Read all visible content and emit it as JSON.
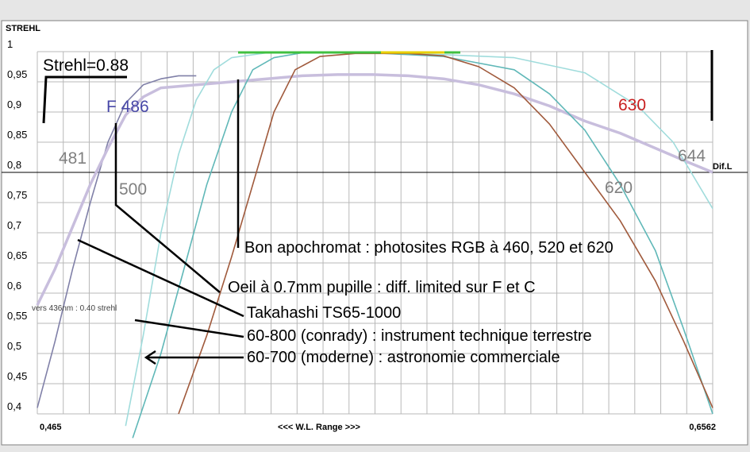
{
  "chart_data": {
    "type": "line",
    "title": "",
    "ylabel": "STREHL",
    "xlabel": "<<<  W.L. Range  >>>",
    "ylim": [
      0.4,
      1.0
    ],
    "xlim": [
      0.465,
      0.6562
    ],
    "x_tick_labels": [
      "0,465",
      "0,6562"
    ],
    "y_ticks": [
      {
        "value": 1.0,
        "label": "1"
      },
      {
        "value": 0.95,
        "label": "0,95"
      },
      {
        "value": 0.9,
        "label": "0,9"
      },
      {
        "value": 0.85,
        "label": "0,85"
      },
      {
        "value": 0.8,
        "label": "0,8"
      },
      {
        "value": 0.75,
        "label": "0,75"
      },
      {
        "value": 0.7,
        "label": "0,7"
      },
      {
        "value": 0.65,
        "label": "0,65"
      },
      {
        "value": 0.6,
        "label": "0,6"
      },
      {
        "value": 0.55,
        "label": "0,55"
      },
      {
        "value": 0.5,
        "label": "0,5"
      },
      {
        "value": 0.45,
        "label": "0,45"
      },
      {
        "value": 0.4,
        "label": "0,4"
      }
    ],
    "grid": true,
    "reference_line": {
      "value": 0.8,
      "label": "Dif.L"
    },
    "series": [
      {
        "name": "Takahashi TS65-1000",
        "color": "#8080a8",
        "points": [
          [
            0.465,
            0.41
          ],
          [
            0.47,
            0.52
          ],
          [
            0.475,
            0.64
          ],
          [
            0.48,
            0.75
          ],
          [
            0.485,
            0.85
          ],
          [
            0.49,
            0.915
          ],
          [
            0.495,
            0.945
          ],
          [
            0.5,
            0.955
          ],
          [
            0.505,
            0.96
          ],
          [
            0.51,
            0.96
          ]
        ]
      },
      {
        "name": "Oeil à 0.7mm pupille : diff. limited  sur F et C",
        "color": "#c8bedd",
        "points": [
          [
            0.465,
            0.58
          ],
          [
            0.47,
            0.64
          ],
          [
            0.475,
            0.71
          ],
          [
            0.48,
            0.78
          ],
          [
            0.485,
            0.84
          ],
          [
            0.49,
            0.895
          ],
          [
            0.495,
            0.925
          ],
          [
            0.5,
            0.94
          ],
          [
            0.51,
            0.945
          ],
          [
            0.52,
            0.95
          ],
          [
            0.53,
            0.955
          ],
          [
            0.54,
            0.96
          ],
          [
            0.55,
            0.962
          ],
          [
            0.56,
            0.962
          ],
          [
            0.57,
            0.96
          ],
          [
            0.58,
            0.955
          ],
          [
            0.59,
            0.945
          ],
          [
            0.6,
            0.93
          ],
          [
            0.61,
            0.91
          ],
          [
            0.62,
            0.885
          ],
          [
            0.63,
            0.865
          ],
          [
            0.64,
            0.84
          ],
          [
            0.65,
            0.815
          ],
          [
            0.6562,
            0.8
          ]
        ]
      },
      {
        "name": "60-800 (conrady) : instrument technique terrestre",
        "color": "#a0dcdc",
        "points": [
          [
            0.49,
            0.38
          ],
          [
            0.495,
            0.53
          ],
          [
            0.5,
            0.7
          ],
          [
            0.505,
            0.83
          ],
          [
            0.51,
            0.92
          ],
          [
            0.515,
            0.97
          ],
          [
            0.52,
            0.99
          ],
          [
            0.53,
            0.998
          ],
          [
            0.56,
            0.998
          ],
          [
            0.58,
            0.995
          ],
          [
            0.6,
            0.99
          ],
          [
            0.62,
            0.965
          ],
          [
            0.635,
            0.91
          ],
          [
            0.645,
            0.85
          ],
          [
            0.6562,
            0.74
          ]
        ]
      },
      {
        "name": "60-700 (moderne) : astronomie commerciale",
        "color": "#60b8b8",
        "points": [
          [
            0.492,
            0.36
          ],
          [
            0.5,
            0.5
          ],
          [
            0.507,
            0.65
          ],
          [
            0.513,
            0.78
          ],
          [
            0.52,
            0.9
          ],
          [
            0.526,
            0.97
          ],
          [
            0.532,
            0.99
          ],
          [
            0.54,
            0.998
          ],
          [
            0.56,
            0.998
          ],
          [
            0.58,
            0.992
          ],
          [
            0.6,
            0.97
          ],
          [
            0.61,
            0.93
          ],
          [
            0.62,
            0.87
          ],
          [
            0.63,
            0.78
          ],
          [
            0.64,
            0.67
          ],
          [
            0.648,
            0.54
          ],
          [
            0.6562,
            0.4
          ]
        ]
      },
      {
        "name": "Bon apochromat : photosites RGB à 460, 520 et 620",
        "color": "#a05a3c",
        "points": [
          [
            0.505,
            0.4
          ],
          [
            0.513,
            0.53
          ],
          [
            0.52,
            0.66
          ],
          [
            0.527,
            0.8
          ],
          [
            0.532,
            0.9
          ],
          [
            0.538,
            0.97
          ],
          [
            0.545,
            0.992
          ],
          [
            0.555,
            0.997
          ],
          [
            0.57,
            0.997
          ],
          [
            0.58,
            0.993
          ],
          [
            0.59,
            0.975
          ],
          [
            0.6,
            0.94
          ],
          [
            0.61,
            0.88
          ],
          [
            0.62,
            0.8
          ],
          [
            0.63,
            0.72
          ],
          [
            0.64,
            0.62
          ],
          [
            0.648,
            0.52
          ],
          [
            0.6562,
            0.41
          ]
        ]
      }
    ],
    "annotations": [
      {
        "text": "Strehl=0.88"
      },
      {
        "text": "F 486",
        "color": "#4848a8"
      },
      {
        "text": "481"
      },
      {
        "text": "500"
      },
      {
        "text": "620"
      },
      {
        "text": "630",
        "color": "#c82020"
      },
      {
        "text": "644"
      },
      {
        "text": "vers 436nm : 0.40 strehl"
      },
      {
        "text": "Bon apochromat : photosites RGB à 460, 520 et 620"
      },
      {
        "text": "Oeil à 0.7mm pupille : diff. limited  sur F et C"
      },
      {
        "text": "Takahashi TS65-1000"
      },
      {
        "text": "60-800 (conrady) : instrument technique terrestre"
      },
      {
        "text": "60-700 (moderne) : astronomie commerciale"
      }
    ]
  }
}
